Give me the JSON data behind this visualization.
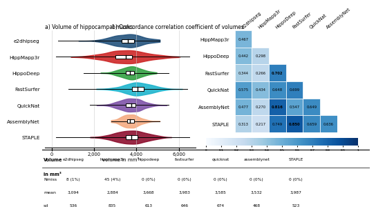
{
  "title_a": "a) Volume of hippocampal masks",
  "title_b": "b) Concordance correlation coefficient of volumes",
  "methods": [
    "e2dhipseg",
    "HippMapp3r",
    "HippoDeep",
    "FastSurfer",
    "QuickNat",
    "AssemblyNet",
    "STAPLE"
  ],
  "violin_colors": [
    "#1f4e79",
    "#cc2222",
    "#2e9e3e",
    "#1ab3cc",
    "#7b4fa6",
    "#f4a97f",
    "#8b0a2a"
  ],
  "violin_medians": [
    3600,
    3500,
    3700,
    4050,
    3750,
    3700,
    3750
  ],
  "violin_q1": [
    3300,
    3000,
    3500,
    3800,
    3500,
    3550,
    3500
  ],
  "violin_q3": [
    3900,
    3800,
    3900,
    4350,
    3950,
    3900,
    4050
  ],
  "violin_whisker_low": [
    300,
    200,
    1500,
    800,
    1800,
    2800,
    200
  ],
  "violin_whisker_high": [
    5100,
    6500,
    5500,
    6400,
    5500,
    5100,
    6500
  ],
  "corr_row_methods": [
    "HippMapp3r",
    "HippoDeep",
    "FastSurfer",
    "QuickNat",
    "AssemblyNet",
    "STAPLE"
  ],
  "corr_col_methods": [
    "e2dhipseg",
    "HippMapp3r",
    "HippoDeep",
    "FastSurfer",
    "QuickNat",
    "AssemblyNet"
  ],
  "corr_matrix": [
    [
      0.467,
      null,
      null,
      null,
      null,
      null
    ],
    [
      0.442,
      0.298,
      null,
      null,
      null,
      null
    ],
    [
      0.344,
      0.266,
      0.702,
      null,
      null,
      null
    ],
    [
      0.575,
      0.434,
      0.648,
      0.699,
      null,
      null
    ],
    [
      0.477,
      0.27,
      0.816,
      0.547,
      0.649,
      null
    ],
    [
      0.313,
      0.217,
      0.749,
      0.85,
      0.659,
      0.636
    ]
  ],
  "bold_values": [
    [
      false,
      false,
      false,
      false,
      false,
      false
    ],
    [
      false,
      false,
      false,
      false,
      false,
      false
    ],
    [
      false,
      false,
      true,
      false,
      false,
      false
    ],
    [
      false,
      false,
      false,
      false,
      false,
      false
    ],
    [
      false,
      false,
      true,
      false,
      false,
      false
    ],
    [
      false,
      false,
      false,
      true,
      false,
      false
    ]
  ],
  "table_headers": [
    "Volume\nin mm3",
    "e2dhipseg",
    "hippmapp3r",
    "hippodeep",
    "fastsurfer",
    "quicknat",
    "assemblynet",
    "STAPLE"
  ],
  "table_nmiss": [
    "Nmiss",
    "8 (1%)",
    "45 (4%)",
    "0 (0%)",
    "0 (0%)",
    "0 (0%)",
    "0 (0%)",
    "0 (0%)"
  ],
  "table_mean": [
    "mean",
    "3,094",
    "2,884",
    "3,668",
    "3,983",
    "3,585",
    "3,532",
    "3,987"
  ],
  "table_sd": [
    "sd",
    "536",
    "835",
    "613",
    "646",
    "674",
    "468",
    "523"
  ],
  "xticks": [
    0,
    2000,
    4000,
    6000
  ],
  "xlabel": "volume in mm³",
  "xmin": -300,
  "xmax": 6800
}
